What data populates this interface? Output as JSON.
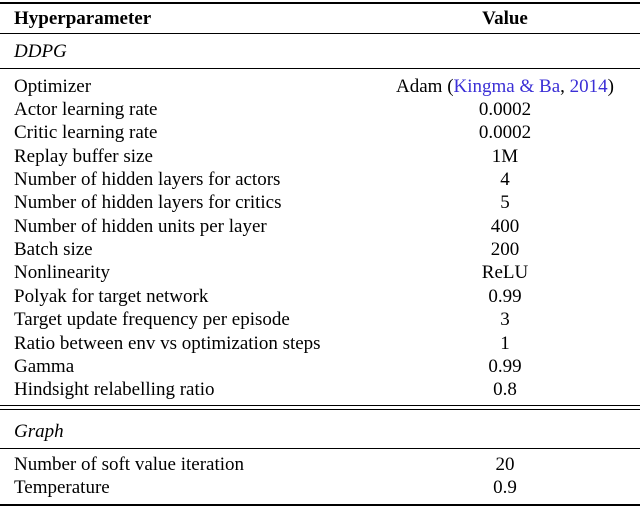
{
  "table": {
    "header": {
      "param": "Hyperparameter",
      "value": "Value"
    },
    "sections": [
      {
        "name": "DDPG",
        "rows": [
          {
            "param": "Optimizer",
            "value_prefix": "Adam (",
            "cite_authors": "Kingma & Ba",
            "cite_sep": ", ",
            "cite_year": "2014",
            "value_suffix": ")"
          },
          {
            "param": "Actor learning rate",
            "value": "0.0002"
          },
          {
            "param": "Critic learning rate",
            "value": "0.0002"
          },
          {
            "param": "Replay buffer size",
            "value": "1M"
          },
          {
            "param": "Number of hidden layers for actors",
            "value": "4"
          },
          {
            "param": "Number of hidden layers for critics",
            "value": "5"
          },
          {
            "param": "Number of hidden units per layer",
            "value": "400"
          },
          {
            "param": "Batch size",
            "value": "200"
          },
          {
            "param": "Nonlinearity",
            "value": "ReLU"
          },
          {
            "param": "Polyak for target network",
            "value": "0.99"
          },
          {
            "param": "Target update frequency per episode",
            "value": "3"
          },
          {
            "param": "Ratio between env vs optimization steps",
            "value": "1"
          },
          {
            "param": "Gamma",
            "value": "0.99"
          },
          {
            "param": "Hindsight relabelling ratio",
            "value": "0.8"
          }
        ]
      },
      {
        "name": "Graph",
        "rows": [
          {
            "param": "Number of soft value iteration",
            "value": "20"
          },
          {
            "param": "Temperature",
            "value": "0.9"
          }
        ]
      }
    ]
  }
}
